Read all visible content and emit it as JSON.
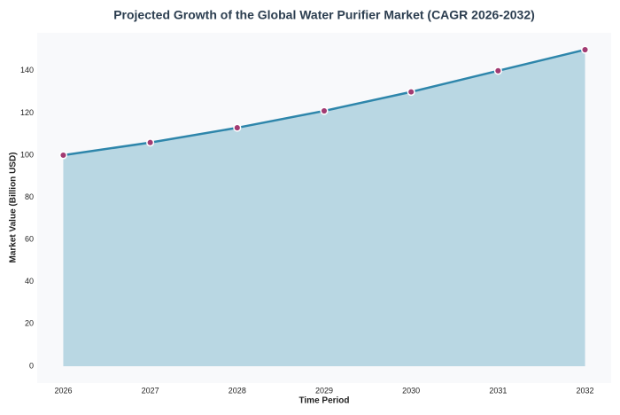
{
  "chart_data": {
    "type": "area",
    "title": "Projected Growth of the Global Water Purifier Market (CAGR 2026-2032)",
    "xlabel": "Time Period",
    "ylabel": "Market Value (Billion USD)",
    "x": [
      2026,
      2027,
      2028,
      2029,
      2030,
      2031,
      2032
    ],
    "values": [
      100,
      106,
      113,
      121,
      130,
      140,
      150
    ],
    "line_color": "#2e86ab",
    "fill_color": "#b9d7e3",
    "marker_color": "#a23b72",
    "xlim": [
      2025.7,
      2032.3
    ],
    "xticks": [
      2026,
      2027,
      2028,
      2029,
      2030,
      2031,
      2032
    ],
    "ylim": [
      -8,
      158
    ],
    "yticks": [
      0,
      20,
      40,
      60,
      80,
      100,
      120,
      140
    ]
  }
}
